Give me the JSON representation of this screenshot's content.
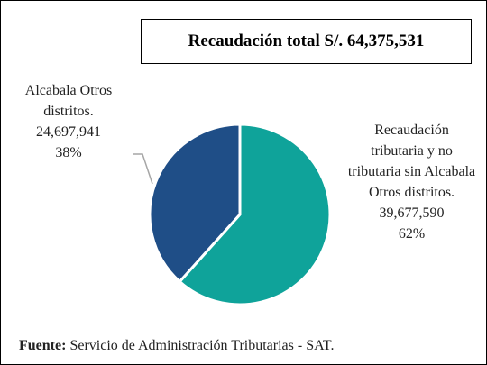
{
  "chart_data": {
    "type": "pie",
    "title": "Recaudación total S/. 64,375,531",
    "categories": [
      "Recaudación tributaria y no tributaria sin Alcabala Otros distritos.",
      "Alcabala Otros distritos."
    ],
    "values": [
      39677590,
      24697941
    ],
    "value_labels": [
      "39,677,590",
      "24,697,941"
    ],
    "percent_labels": [
      "62%",
      "38%"
    ],
    "colors": [
      "#0fa39a",
      "#1f4e87"
    ],
    "source_label": "Fuente:",
    "source": "Servicio de Administración Tributarias - SAT."
  }
}
